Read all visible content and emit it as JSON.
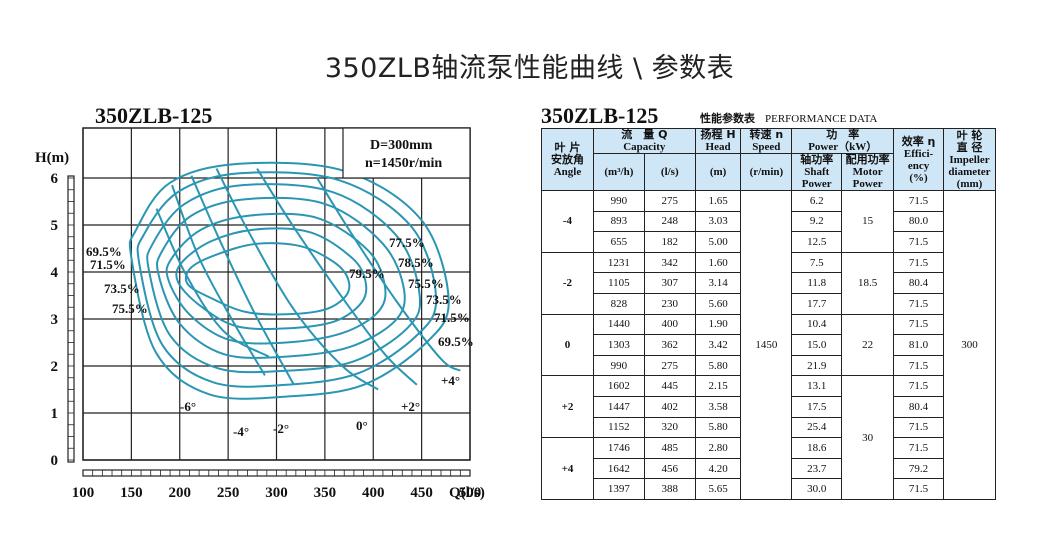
{
  "page_title": "350ZLB轴流泵性能曲线 \\ 参数表",
  "chart_data": {
    "type": "line",
    "title": "350ZLB-125",
    "info_box": [
      "D=300mm",
      "n=1450r/min"
    ],
    "xlabel": "Q(l/s)",
    "ylabel": "H(m)",
    "xlim": [
      100,
      500
    ],
    "ylim": [
      0,
      6
    ],
    "xticks": [
      "100",
      "150",
      "200",
      "250",
      "300",
      "350",
      "400",
      "450",
      "500"
    ],
    "yticks": [
      "0",
      "1",
      "2",
      "3",
      "4",
      "5",
      "6"
    ],
    "grid": true,
    "series": [
      {
        "name": "-6°",
        "x": [
          176,
          205,
          245,
          292
        ],
        "y": [
          5.35,
          4.0,
          2.75,
          2.2
        ]
      },
      {
        "name": "-4°",
        "x": [
          192,
          220,
          255,
          288
        ],
        "y": [
          5.85,
          4.3,
          2.95,
          1.8
        ]
      },
      {
        "name": "-2°",
        "x": [
          212,
          243,
          278,
          318
        ],
        "y": [
          6.05,
          4.6,
          3.1,
          1.6
        ]
      },
      {
        "name": "0°",
        "x": [
          238,
          270,
          318,
          368,
          405
        ],
        "y": [
          6.2,
          4.9,
          3.2,
          2.0,
          1.5
        ]
      },
      {
        "name": "+2°",
        "x": [
          280,
          318,
          370,
          412,
          445
        ],
        "y": [
          6.2,
          4.95,
          3.4,
          2.25,
          1.6
        ]
      },
      {
        "name": "+4°",
        "x": [
          342,
          378,
          425,
          470,
          490
        ],
        "y": [
          6.0,
          4.8,
          3.35,
          2.15,
          1.9
        ]
      }
    ],
    "efficiency_contours": [
      {
        "name": "69.5%",
        "x": [
          150,
          175,
          230,
          310,
          390,
          455,
          478,
          450,
          370,
          260,
          190,
          155,
          150
        ],
        "y": [
          4.3,
          2.3,
          1.4,
          1.35,
          1.6,
          2.5,
          3.4,
          5.1,
          6.15,
          6.3,
          5.9,
          4.9,
          4.3
        ]
      },
      {
        "name": "71.5%",
        "x": [
          158,
          182,
          235,
          310,
          385,
          445,
          465,
          440,
          365,
          262,
          198,
          163,
          158
        ],
        "y": [
          4.2,
          2.45,
          1.65,
          1.6,
          1.85,
          2.65,
          3.45,
          4.95,
          5.95,
          6.1,
          5.7,
          4.8,
          4.2
        ]
      },
      {
        "name": "73.5%",
        "x": [
          168,
          190,
          240,
          310,
          380,
          435,
          448,
          425,
          358,
          265,
          205,
          172,
          168
        ],
        "y": [
          4.05,
          2.65,
          1.95,
          1.9,
          2.1,
          2.8,
          3.5,
          4.75,
          5.7,
          5.85,
          5.45,
          4.6,
          4.05
        ]
      },
      {
        "name": "75.5%",
        "x": [
          178,
          200,
          246,
          310,
          375,
          422,
          432,
          410,
          350,
          268,
          212,
          182,
          178
        ],
        "y": [
          3.95,
          2.9,
          2.25,
          2.2,
          2.4,
          2.95,
          3.6,
          4.6,
          5.45,
          5.55,
          5.2,
          4.45,
          3.95
        ]
      },
      {
        "name": "77.5%",
        "x": [
          188,
          210,
          252,
          310,
          368,
          405,
          412,
          395,
          342,
          272,
          222,
          192,
          188
        ],
        "y": [
          3.85,
          3.1,
          2.55,
          2.5,
          2.7,
          3.15,
          3.7,
          4.45,
          5.15,
          5.2,
          4.9,
          4.3,
          3.85
        ]
      },
      {
        "name": "78.5%",
        "x": [
          198,
          220,
          258,
          310,
          360,
          388,
          392,
          378,
          334,
          276,
          232,
          202,
          198
        ],
        "y": [
          3.8,
          3.3,
          2.85,
          2.8,
          2.95,
          3.35,
          3.8,
          4.3,
          4.85,
          4.9,
          4.65,
          4.2,
          3.8
        ]
      },
      {
        "name": "79.5%",
        "x": [
          208,
          232,
          268,
          310,
          350,
          372,
          374,
          360,
          325,
          280,
          242,
          212,
          208
        ],
        "y": [
          3.75,
          3.45,
          3.15,
          3.1,
          3.2,
          3.5,
          3.85,
          4.2,
          4.55,
          4.6,
          4.4,
          4.1,
          3.75
        ]
      }
    ],
    "efficiency_labels": {
      "left": [
        "69.5%",
        "71.5%",
        "73.5%",
        "75.5%"
      ],
      "right": [
        "77.5%",
        "78.5%",
        "79.5%",
        "75.5%",
        "73.5%",
        "71.5%",
        "69.5%"
      ]
    },
    "angle_labels": [
      "-6°",
      "-4°",
      "-2°",
      "0°",
      "+2°",
      "+4°"
    ]
  },
  "table": {
    "model": "350ZLB-125",
    "caption_cn": "性能参数表",
    "caption_en": "PERFORMANCE DATA",
    "headers": {
      "angle_cn": "叶 片\n安放角",
      "angle_en": "Angle",
      "capacity_cn": "流　量 Q",
      "capacity_en": "Capacity",
      "m3h": "(m³/h)",
      "ls": "(l/s)",
      "head_cn": "扬程 H",
      "head_en": "Head",
      "head_unit": "(m)",
      "speed_cn": "转速 n",
      "speed_en": "Speed",
      "speed_unit": "(r/min)",
      "power_cn": "功　率",
      "power_en": "Power（kW）",
      "shaft_cn": "轴功率",
      "shaft_en": "Shaft\nPower",
      "motor_cn": "配用功率",
      "motor_en": "Motor\nPower",
      "eff_cn": "效率 η",
      "eff_en": "Effici-\nency\n(%)",
      "imp_cn": "叶 轮\n直 径",
      "imp_en": "Impeller\ndiameter\n(mm)"
    },
    "speed": "1450",
    "impeller": "300",
    "groups": [
      {
        "angle": "-4",
        "motor": "15",
        "rows": [
          {
            "m3h": "990",
            "ls": "275",
            "head": "1.65",
            "shaft": "6.2",
            "eff": "71.5"
          },
          {
            "m3h": "893",
            "ls": "248",
            "head": "3.03",
            "shaft": "9.2",
            "eff": "80.0"
          },
          {
            "m3h": "655",
            "ls": "182",
            "head": "5.00",
            "shaft": "12.5",
            "eff": "71.5"
          }
        ]
      },
      {
        "angle": "-2",
        "motor": "18.5",
        "rows": [
          {
            "m3h": "1231",
            "ls": "342",
            "head": "1.60",
            "shaft": "7.5",
            "eff": "71.5"
          },
          {
            "m3h": "1105",
            "ls": "307",
            "head": "3.14",
            "shaft": "11.8",
            "eff": "80.4"
          },
          {
            "m3h": "828",
            "ls": "230",
            "head": "5.60",
            "shaft": "17.7",
            "eff": "71.5"
          }
        ]
      },
      {
        "angle": "0",
        "motor": "22",
        "rows": [
          {
            "m3h": "1440",
            "ls": "400",
            "head": "1.90",
            "shaft": "10.4",
            "eff": "71.5"
          },
          {
            "m3h": "1303",
            "ls": "362",
            "head": "3.42",
            "shaft": "15.0",
            "eff": "81.0"
          },
          {
            "m3h": "990",
            "ls": "275",
            "head": "5.80",
            "shaft": "21.9",
            "eff": "71.5"
          }
        ]
      },
      {
        "angle": "+2",
        "motor": "30",
        "rows": [
          {
            "m3h": "1602",
            "ls": "445",
            "head": "2.15",
            "shaft": "13.1",
            "eff": "71.5"
          },
          {
            "m3h": "1447",
            "ls": "402",
            "head": "3.58",
            "shaft": "17.5",
            "eff": "80.4"
          },
          {
            "m3h": "1152",
            "ls": "320",
            "head": "5.80",
            "shaft": "25.4",
            "eff": "71.5"
          }
        ]
      },
      {
        "angle": "+4",
        "motor": "30",
        "rows": [
          {
            "m3h": "1746",
            "ls": "485",
            "head": "2.80",
            "shaft": "18.6",
            "eff": "71.5"
          },
          {
            "m3h": "1642",
            "ls": "456",
            "head": "4.20",
            "shaft": "23.7",
            "eff": "79.2"
          },
          {
            "m3h": "1397",
            "ls": "388",
            "head": "5.65",
            "shaft": "30.0",
            "eff": "71.5"
          }
        ]
      }
    ]
  }
}
